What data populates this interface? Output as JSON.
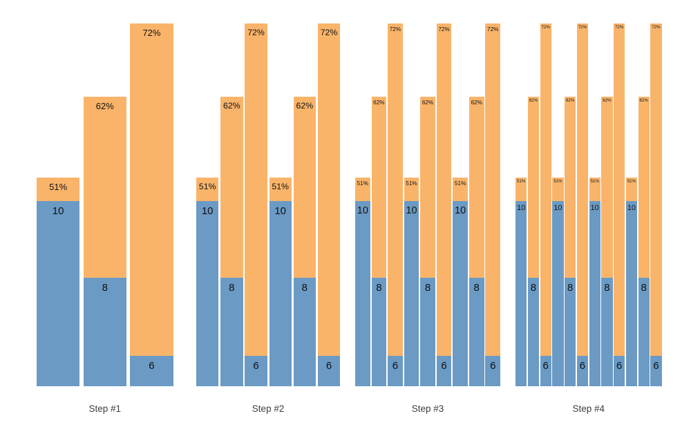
{
  "chart_data": {
    "type": "bar",
    "variant": "stacked-grouped-small-multiples",
    "title": "",
    "xlabel": "",
    "ylabel": "",
    "axes_visible": false,
    "gridlines": false,
    "legend": null,
    "background": "#ffffff",
    "colors": {
      "value_segment": "#6B9AC4",
      "percent_segment": "#F9B46A",
      "label_text": "#111111",
      "group_label_text": "#3c3c3c"
    },
    "pattern_note": "each group repeats the triplet value=10/51%, 8/62%, 6/72%",
    "groups": [
      {
        "label": "Step #1",
        "bars": [
          {
            "value": "10",
            "percent": "51%"
          },
          {
            "value": "8",
            "percent": "62%"
          },
          {
            "value": "6",
            "percent": "72%"
          }
        ]
      },
      {
        "label": "Step #2",
        "bars": [
          {
            "value": "10",
            "percent": "51%"
          },
          {
            "value": "8",
            "percent": "62%"
          },
          {
            "value": "6",
            "percent": "72%"
          },
          {
            "value": "10",
            "percent": "51%"
          },
          {
            "value": "8",
            "percent": "62%"
          },
          {
            "value": "6",
            "percent": "72%"
          }
        ]
      },
      {
        "label": "Step #3",
        "bars": [
          {
            "value": "10",
            "percent": "51%"
          },
          {
            "value": "8",
            "percent": "62%"
          },
          {
            "value": "6",
            "percent": "72%"
          },
          {
            "value": "10",
            "percent": "51%"
          },
          {
            "value": "8",
            "percent": "62%"
          },
          {
            "value": "6",
            "percent": "72%"
          },
          {
            "value": "10",
            "percent": "51%"
          },
          {
            "value": "8",
            "percent": "62%"
          },
          {
            "value": "6",
            "percent": "72%"
          }
        ]
      },
      {
        "label": "Step #4",
        "bars": [
          {
            "value": "10",
            "percent": "51%"
          },
          {
            "value": "8",
            "percent": "62%"
          },
          {
            "value": "6",
            "percent": "72%"
          },
          {
            "value": "10",
            "percent": "51%"
          },
          {
            "value": "8",
            "percent": "62%"
          },
          {
            "value": "6",
            "percent": "72%"
          },
          {
            "value": "10",
            "percent": "51%"
          },
          {
            "value": "8",
            "percent": "62%"
          },
          {
            "value": "6",
            "percent": "72%"
          },
          {
            "value": "10",
            "percent": "51%"
          },
          {
            "value": "8",
            "percent": "62%"
          },
          {
            "value": "6",
            "percent": "72%"
          }
        ]
      }
    ]
  }
}
